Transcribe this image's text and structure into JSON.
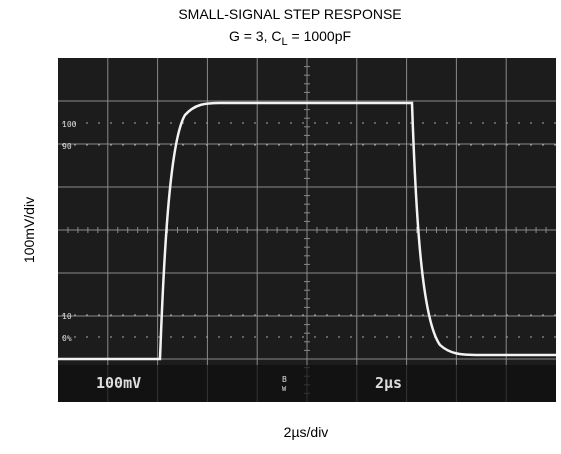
{
  "title": "SMALL-SIGNAL STEP RESPONSE",
  "subtitle": {
    "before": "G = 3, C",
    "subscript": "L",
    "after": " = 1000pF"
  },
  "y_axis_label": "100mV/div",
  "x_axis_label": "2µs/div",
  "scope": {
    "volts_per_div": "100mV",
    "bandwidth": "B",
    "bandwidth_sub": "W",
    "time_per_div": "2µs",
    "markers": [
      "100",
      "90",
      "10",
      "0%"
    ]
  }
}
